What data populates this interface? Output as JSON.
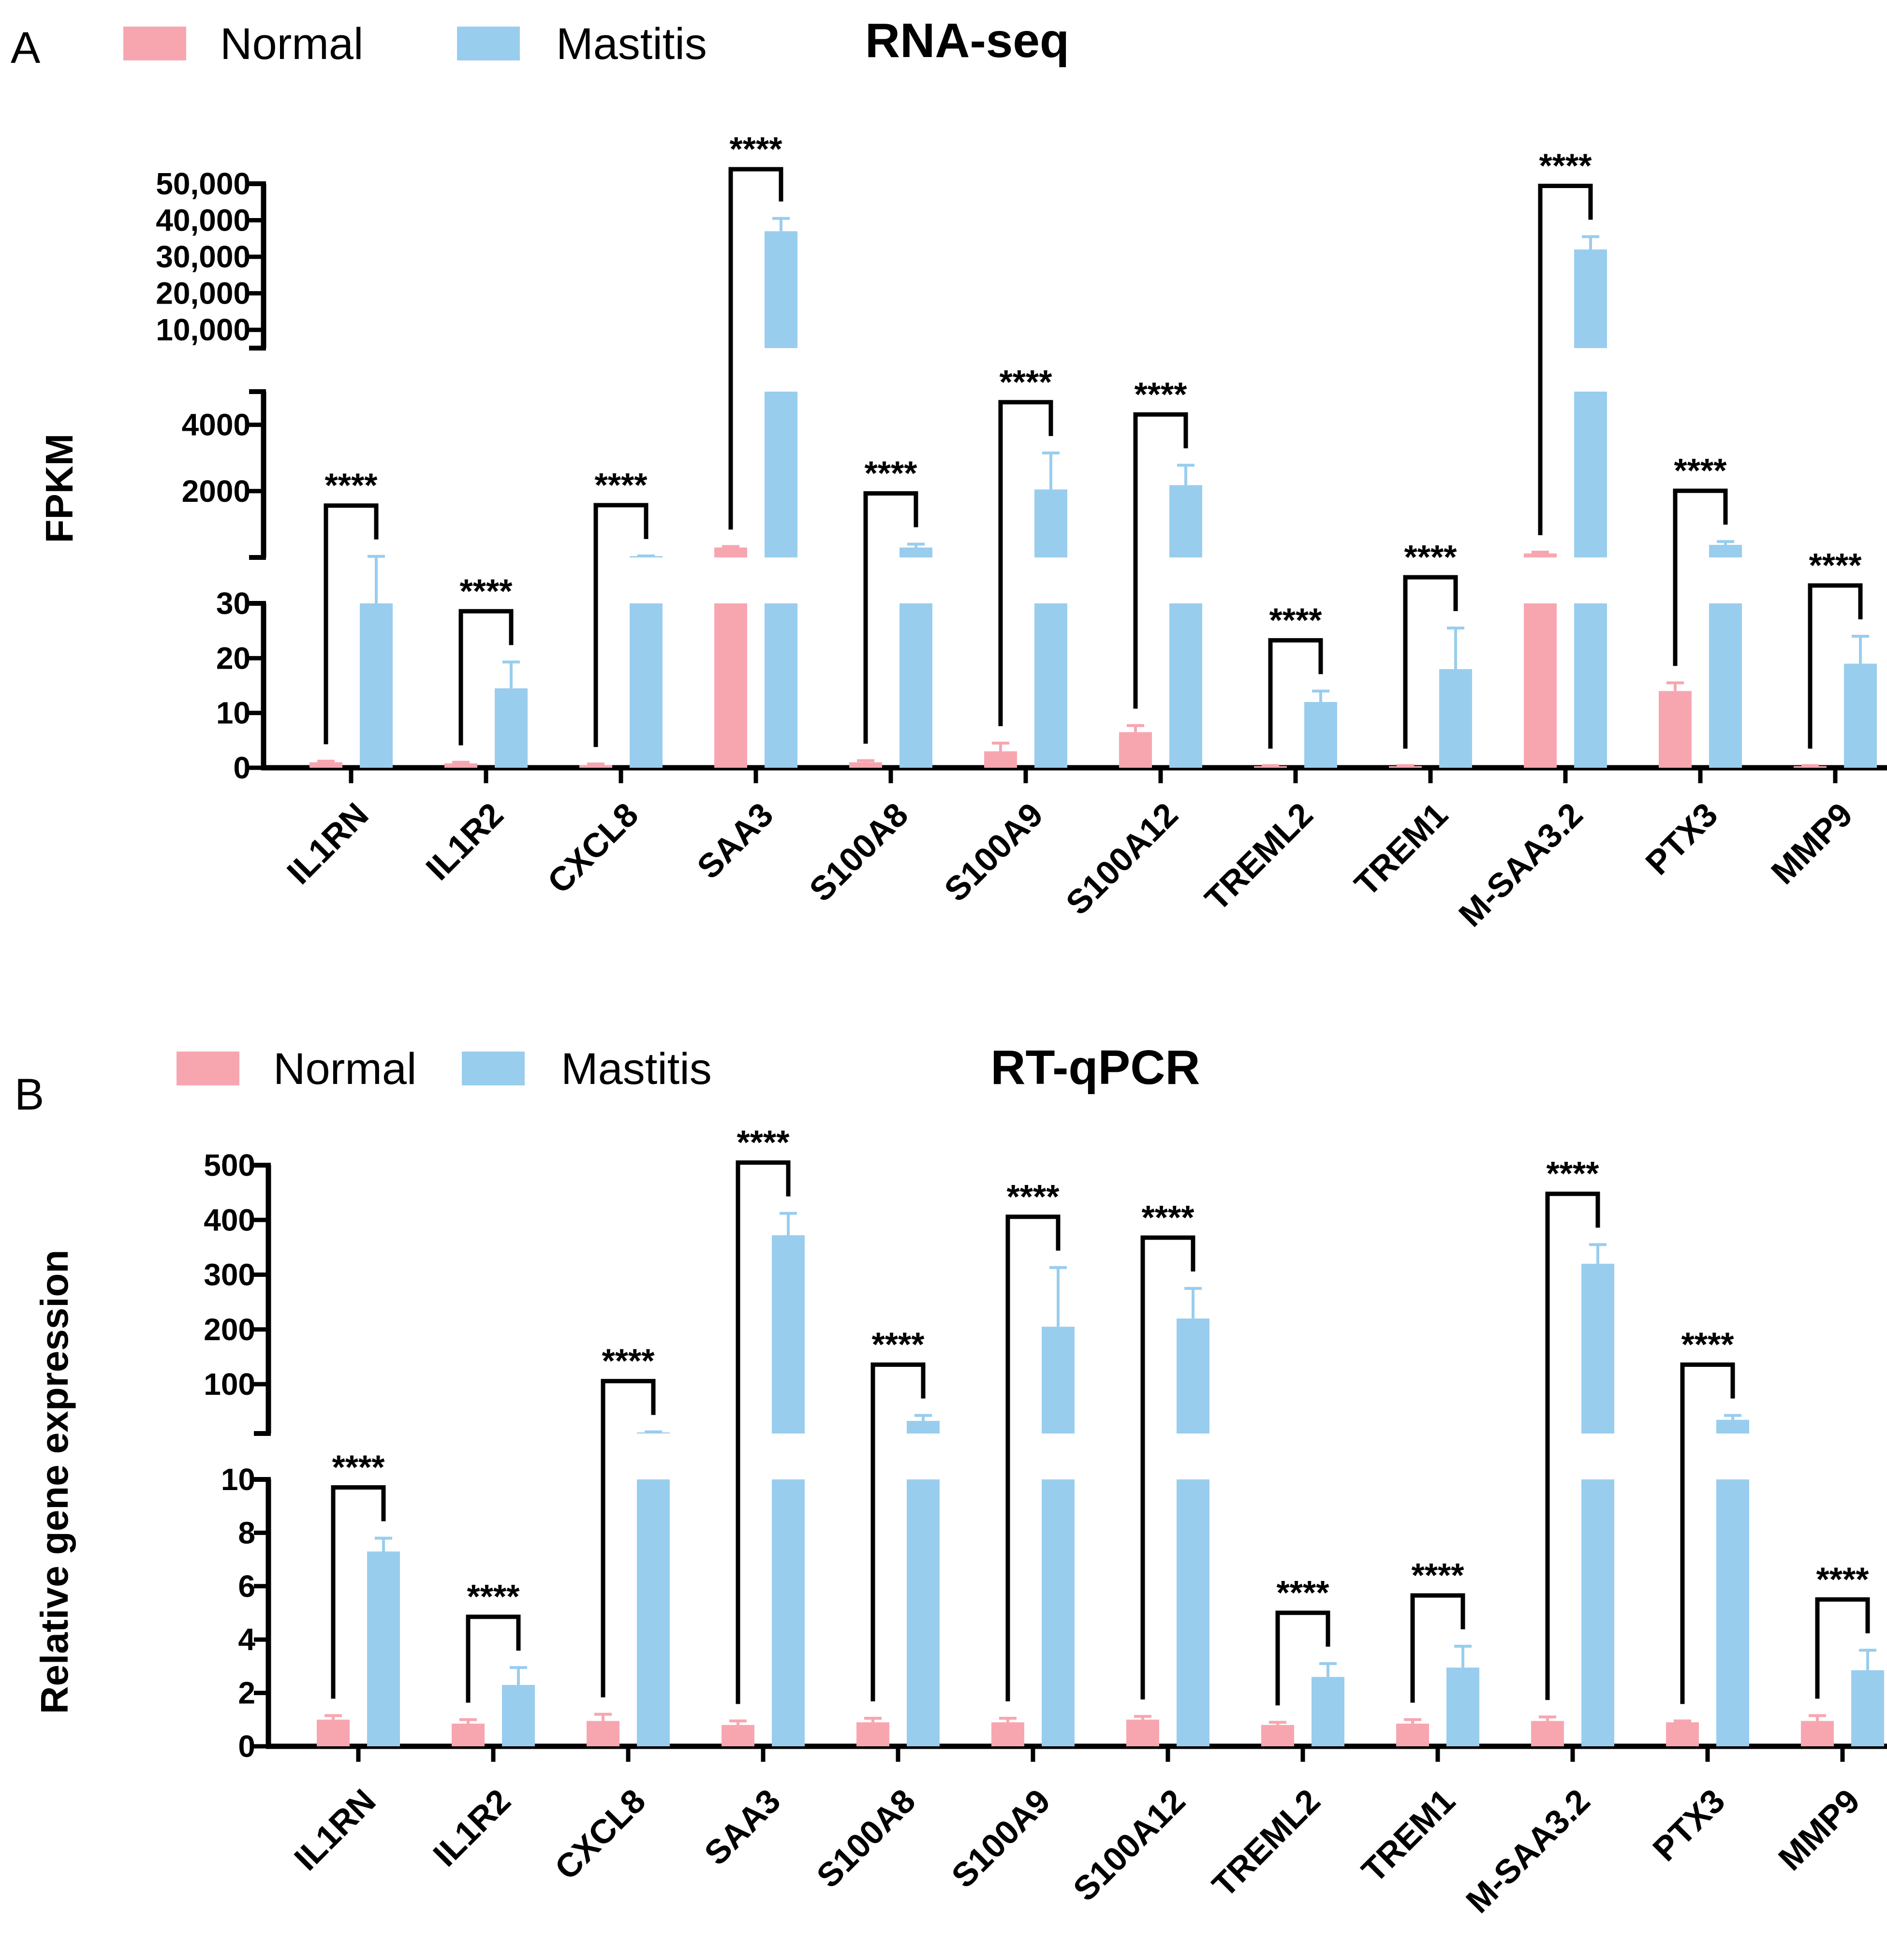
{
  "colors": {
    "normal": "#F7A6B0",
    "mastitis": "#99CDEE",
    "axis": "#000000"
  },
  "chart_data": [
    {
      "panel": "A",
      "type": "bar",
      "title": "RNA-seq",
      "xlabel": "",
      "ylabel": "FPKM",
      "legend": [
        "Normal",
        "Mastitis"
      ],
      "legend_position": "top-left",
      "categories": [
        "IL1RN",
        "IL1R2",
        "CXCL8",
        "SAA3",
        "S100A8",
        "S100A9",
        "S100A12",
        "TREML2",
        "TREM1",
        "M-SAA3.2",
        "PTX3",
        "MMP9"
      ],
      "axis_segments": [
        {
          "range": [
            0,
            30
          ],
          "ticks": [
            "0",
            "10",
            "20",
            "30"
          ]
        },
        {
          "range": [
            0,
            5000
          ],
          "ticks": [
            "2000",
            "4000"
          ]
        },
        {
          "range": [
            5000,
            50000
          ],
          "ticks": [
            "10,000",
            "20,000",
            "30,000",
            "40,000",
            "50,000"
          ]
        }
      ],
      "series": [
        {
          "name": "Normal",
          "values": [
            1,
            0.8,
            0.5,
            300,
            1,
            3,
            6.5,
            0.3,
            0.3,
            120,
            14,
            0.3
          ],
          "errors": [
            0.2,
            0.2,
            0.2,
            30,
            0.3,
            1.5,
            1.2,
            0.1,
            0.1,
            40,
            1.5,
            0.1
          ]
        },
        {
          "name": "Mastitis",
          "values": [
            30,
            14.5,
            40,
            37000,
            300,
            2050,
            2180,
            12,
            18,
            32000,
            380,
            19
          ],
          "errors": [
            3,
            4.8,
            6,
            3500,
            100,
            1100,
            600,
            2,
            7.5,
            3500,
            100,
            5
          ]
        }
      ],
      "significance": [
        "****",
        "****",
        "****",
        "****",
        "****",
        "****",
        "****",
        "****",
        "****",
        "****",
        "****",
        "****"
      ]
    },
    {
      "panel": "B",
      "type": "bar",
      "title": "RT-qPCR",
      "xlabel": "",
      "ylabel": "Relative gene expression",
      "legend": [
        "Normal",
        "Mastitis"
      ],
      "legend_position": "top-left",
      "categories": [
        "IL1RN",
        "IL1R2",
        "CXCL8",
        "SAA3",
        "S100A8",
        "S100A9",
        "S100A12",
        "TREML2",
        "TREM1",
        "M-SAA3.2",
        "PTX3",
        "MMP9"
      ],
      "axis_segments": [
        {
          "range": [
            0,
            10
          ],
          "ticks": [
            "0",
            "2",
            "4",
            "6",
            "8",
            "10"
          ]
        },
        {
          "range": [
            10,
            500
          ],
          "ticks": [
            "100",
            "200",
            "300",
            "400",
            "500"
          ]
        }
      ],
      "series": [
        {
          "name": "Normal",
          "values": [
            1,
            0.85,
            0.95,
            0.8,
            0.9,
            0.9,
            1,
            0.8,
            0.85,
            0.95,
            0.9,
            0.95
          ],
          "errors": [
            0.15,
            0.15,
            0.25,
            0.15,
            0.15,
            0.15,
            0.12,
            0.1,
            0.15,
            0.15,
            0.05,
            0.2
          ]
        },
        {
          "name": "Mastitis",
          "values": [
            7.3,
            2.3,
            12,
            372,
            33,
            205,
            220,
            2.6,
            2.95,
            320,
            35,
            2.85
          ],
          "errors": [
            0.5,
            0.65,
            1,
            40,
            10,
            108,
            55,
            0.5,
            0.8,
            35,
            8,
            0.75
          ]
        }
      ],
      "significance": [
        "****",
        "****",
        "****",
        "****",
        "****",
        "****",
        "****",
        "****",
        "****",
        "****",
        "****",
        "****"
      ]
    }
  ]
}
